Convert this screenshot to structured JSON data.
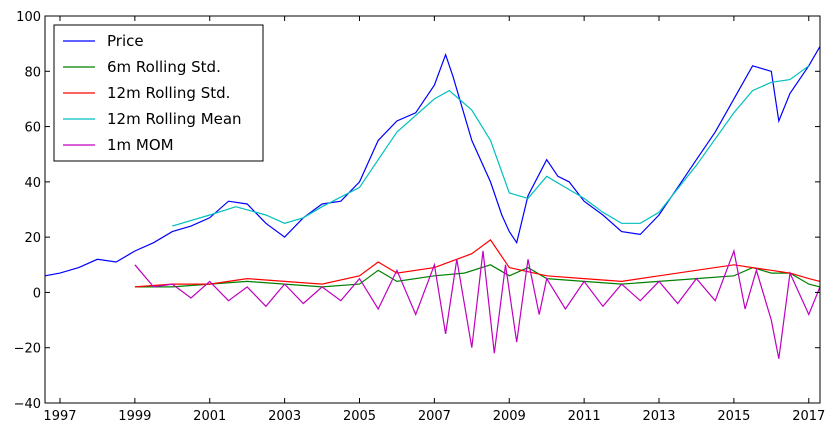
{
  "chart_data": {
    "type": "line",
    "title": "",
    "xlabel": "",
    "ylabel": "",
    "xlim": [
      1996.6,
      2017.3
    ],
    "ylim": [
      -40,
      100
    ],
    "x_ticks": [
      "1997",
      "1999",
      "2001",
      "2003",
      "2005",
      "2007",
      "2009",
      "2011",
      "2013",
      "2015",
      "2017"
    ],
    "y_ticks": [
      "−40",
      "−20",
      "0",
      "20",
      "40",
      "60",
      "80",
      "100"
    ],
    "grid": false,
    "legend_position": "top-left",
    "series": [
      {
        "name": "Price",
        "color": "#0000ff",
        "x": [
          1996.6,
          1997.0,
          1997.5,
          1998.0,
          1998.5,
          1999.0,
          1999.5,
          2000.0,
          2000.5,
          2001.0,
          2001.5,
          2002.0,
          2002.5,
          2003.0,
          2003.5,
          2004.0,
          2004.5,
          2005.0,
          2005.5,
          2006.0,
          2006.5,
          2007.0,
          2007.3,
          2007.5,
          2008.0,
          2008.5,
          2008.8,
          2009.0,
          2009.2,
          2009.5,
          2010.0,
          2010.3,
          2010.6,
          2011.0,
          2011.5,
          2012.0,
          2012.5,
          2013.0,
          2013.5,
          2014.0,
          2014.5,
          2015.0,
          2015.5,
          2016.0,
          2016.2,
          2016.5,
          2017.0,
          2017.3
        ],
        "values": [
          6,
          7,
          9,
          12,
          11,
          15,
          18,
          22,
          24,
          27,
          33,
          32,
          25,
          20,
          27,
          32,
          33,
          40,
          55,
          62,
          65,
          75,
          86,
          78,
          55,
          40,
          28,
          22,
          18,
          35,
          48,
          42,
          40,
          33,
          28,
          22,
          21,
          28,
          38,
          48,
          58,
          70,
          82,
          80,
          62,
          72,
          82,
          89
        ]
      },
      {
        "name": "6m Rolling Std.",
        "color": "#008000",
        "x": [
          1999.0,
          2000.0,
          2001.0,
          2002.0,
          2003.0,
          2004.0,
          2005.0,
          2005.5,
          2006.0,
          2007.0,
          2007.8,
          2008.5,
          2009.0,
          2009.5,
          2010.0,
          2011.0,
          2012.0,
          2013.0,
          2014.0,
          2015.0,
          2015.5,
          2016.0,
          2016.5,
          2017.0,
          2017.3
        ],
        "values": [
          2,
          2,
          3,
          4,
          3,
          2,
          3,
          8,
          4,
          6,
          7,
          10,
          6,
          9,
          5,
          4,
          3,
          4,
          5,
          6,
          9,
          7,
          7,
          3,
          2
        ]
      },
      {
        "name": "12m Rolling Std.",
        "color": "#ff0000",
        "x": [
          1999.0,
          2000.0,
          2001.0,
          2002.0,
          2003.0,
          2004.0,
          2005.0,
          2005.5,
          2006.0,
          2007.0,
          2008.0,
          2008.5,
          2009.0,
          2010.0,
          2011.0,
          2012.0,
          2013.0,
          2014.0,
          2015.0,
          2015.5,
          2016.0,
          2016.5,
          2017.0,
          2017.3
        ],
        "values": [
          2,
          3,
          3,
          5,
          4,
          3,
          6,
          11,
          7,
          9,
          14,
          19,
          9,
          6,
          5,
          4,
          6,
          8,
          10,
          9,
          8,
          7,
          5,
          4
        ]
      },
      {
        "name": "12m Rolling Mean",
        "color": "#00bfbf",
        "x": [
          2000.0,
          2001.0,
          2001.7,
          2002.5,
          2003.0,
          2003.5,
          2004.0,
          2005.0,
          2005.5,
          2006.0,
          2007.0,
          2007.4,
          2008.0,
          2008.5,
          2009.0,
          2009.5,
          2010.0,
          2010.5,
          2011.0,
          2011.5,
          2012.0,
          2012.5,
          2013.0,
          2014.0,
          2015.0,
          2015.5,
          2016.0,
          2016.5,
          2017.0
        ],
        "values": [
          24,
          28,
          31,
          28,
          25,
          27,
          31,
          38,
          48,
          58,
          70,
          73,
          66,
          55,
          36,
          34,
          42,
          38,
          34,
          29,
          25,
          25,
          29,
          46,
          65,
          73,
          76,
          77,
          82
        ]
      },
      {
        "name": "1m MOM",
        "color": "#bf00bf",
        "x": [
          1999.0,
          1999.5,
          2000.0,
          2000.5,
          2001.0,
          2001.5,
          2002.0,
          2002.5,
          2003.0,
          2003.5,
          2004.0,
          2004.5,
          2005.0,
          2005.5,
          2006.0,
          2006.5,
          2007.0,
          2007.3,
          2007.6,
          2008.0,
          2008.3,
          2008.6,
          2008.9,
          2009.2,
          2009.5,
          2009.8,
          2010.0,
          2010.5,
          2011.0,
          2011.5,
          2012.0,
          2012.5,
          2013.0,
          2013.5,
          2014.0,
          2014.5,
          2015.0,
          2015.3,
          2015.6,
          2016.0,
          2016.2,
          2016.5,
          2017.0,
          2017.3
        ],
        "values": [
          10,
          2,
          3,
          -2,
          4,
          -3,
          2,
          -5,
          3,
          -4,
          2,
          -3,
          5,
          -6,
          8,
          -8,
          10,
          -15,
          12,
          -20,
          15,
          -22,
          10,
          -18,
          12,
          -8,
          5,
          -6,
          4,
          -5,
          3,
          -3,
          4,
          -4,
          5,
          -3,
          15,
          -6,
          8,
          -10,
          -24,
          7,
          -8,
          2
        ]
      }
    ]
  }
}
